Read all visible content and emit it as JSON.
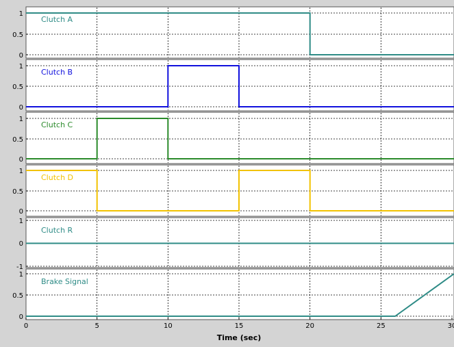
{
  "chart_data": [
    {
      "type": "line",
      "series": [
        {
          "name": "Clutch A",
          "x": [
            0,
            20,
            20,
            30
          ],
          "y": [
            1,
            1,
            0,
            0
          ]
        }
      ],
      "yticks": [
        "1",
        "0.5",
        "0"
      ],
      "ylim": [
        -0.05,
        1.05
      ],
      "xlim": [
        0,
        30
      ],
      "grid": true,
      "color": "#2e8b86",
      "label_color": "#2e8b86"
    },
    {
      "type": "line",
      "series": [
        {
          "name": "Clutch B",
          "x": [
            0,
            10,
            10,
            15,
            15,
            30
          ],
          "y": [
            0,
            0,
            1,
            1,
            0,
            0
          ]
        }
      ],
      "yticks": [
        "1",
        "0.5",
        "0"
      ],
      "ylim": [
        -0.05,
        1.05
      ],
      "xlim": [
        0,
        30
      ],
      "grid": true,
      "color": "#1010dd",
      "label_color": "#1010dd"
    },
    {
      "type": "line",
      "series": [
        {
          "name": "Clutch C",
          "x": [
            0,
            5,
            5,
            10,
            10,
            30
          ],
          "y": [
            0,
            0,
            1,
            1,
            0,
            0
          ]
        }
      ],
      "yticks": [
        "1",
        "0.5",
        "0"
      ],
      "ylim": [
        -0.05,
        1.05
      ],
      "xlim": [
        0,
        30
      ],
      "grid": true,
      "color": "#2a8a2a",
      "label_color": "#2a8a2a"
    },
    {
      "type": "line",
      "series": [
        {
          "name": "Clutch D",
          "x": [
            0,
            5,
            5,
            15,
            15,
            20,
            20,
            30
          ],
          "y": [
            1,
            1,
            0,
            0,
            1,
            1,
            0,
            0
          ]
        }
      ],
      "yticks": [
        "1",
        "0.5",
        "0"
      ],
      "ylim": [
        -0.05,
        1.05
      ],
      "xlim": [
        0,
        30
      ],
      "grid": true,
      "color": "#f2c200",
      "label_color": "#f2c200"
    },
    {
      "type": "line",
      "series": [
        {
          "name": "Clutch R",
          "x": [
            0,
            30
          ],
          "y": [
            0,
            0
          ]
        }
      ],
      "yticks": [
        "1",
        "0",
        "-1"
      ],
      "ylim": [
        -1,
        1
      ],
      "xlim": [
        0,
        30
      ],
      "grid": true,
      "color": "#2e8b86",
      "label_color": "#2e8b86"
    },
    {
      "type": "line",
      "series": [
        {
          "name": "Brake Signal",
          "x": [
            0,
            26,
            30
          ],
          "y": [
            0,
            0,
            1
          ]
        }
      ],
      "yticks": [
        "1",
        "0.5",
        "0"
      ],
      "ylim": [
        -0.05,
        1.05
      ],
      "xlim": [
        0,
        30
      ],
      "grid": true,
      "color": "#2e8b86",
      "label_color": "#2e8b86",
      "xticks": [
        "0",
        "5",
        "10",
        "15",
        "20",
        "25",
        "30"
      ],
      "xlabel": "Time (sec)"
    }
  ]
}
